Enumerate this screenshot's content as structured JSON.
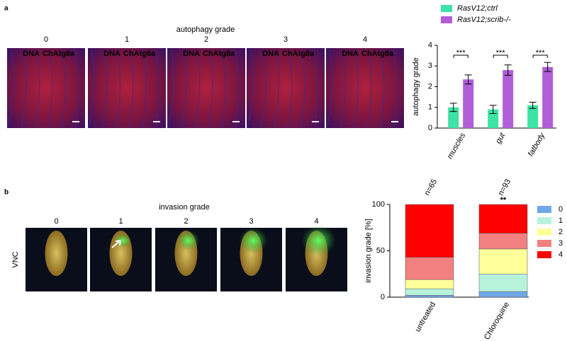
{
  "figure": {
    "panel_a": "a",
    "panel_b": "b",
    "autophagy_title": "autophagy grade",
    "invasion_title": "invasion grade",
    "grades": [
      "0",
      "1",
      "2",
      "3",
      "4"
    ],
    "dna": "DNA",
    "chatg8a": "ChAtg8a",
    "vnc": "VNC"
  },
  "chart_data": [
    {
      "type": "bar",
      "stacked": false,
      "ylabel": "autophagy grade",
      "categories": [
        "muscles",
        "gut",
        "fatbody"
      ],
      "series": [
        {
          "name": "RasV12;ctrl",
          "color": "#3de3a4",
          "values": [
            1.0,
            0.9,
            1.1
          ],
          "errors": [
            0.2,
            0.2,
            0.15
          ]
        },
        {
          "name": "RasV12;scrib-/-",
          "color": "#b05ed8",
          "values": [
            2.35,
            2.8,
            2.95
          ],
          "errors": [
            0.22,
            0.25,
            0.22
          ]
        }
      ],
      "significance": [
        "***",
        "***",
        "***"
      ],
      "ylim": [
        0,
        4
      ],
      "yticks": [
        0,
        1,
        2,
        3,
        4
      ],
      "grid": false
    },
    {
      "type": "bar",
      "stacked": true,
      "ylabel": "invasion grade [%]",
      "categories": [
        "untreated",
        "Chloroquine"
      ],
      "n_labels": [
        "n=65",
        "n=93"
      ],
      "significance_label": "**",
      "series": [
        {
          "name": "0",
          "color": "#6fa8e8",
          "values": [
            2,
            6
          ]
        },
        {
          "name": "1",
          "color": "#b8f2dc",
          "values": [
            7,
            19
          ]
        },
        {
          "name": "2",
          "color": "#ffff99",
          "values": [
            10,
            27
          ]
        },
        {
          "name": "3",
          "color": "#f28080",
          "values": [
            24,
            17
          ]
        },
        {
          "name": "4",
          "color": "#ff0000",
          "values": [
            57,
            31
          ]
        }
      ],
      "ylim": [
        0,
        100
      ],
      "yticks": [
        0,
        50,
        100
      ],
      "grid": false
    }
  ]
}
